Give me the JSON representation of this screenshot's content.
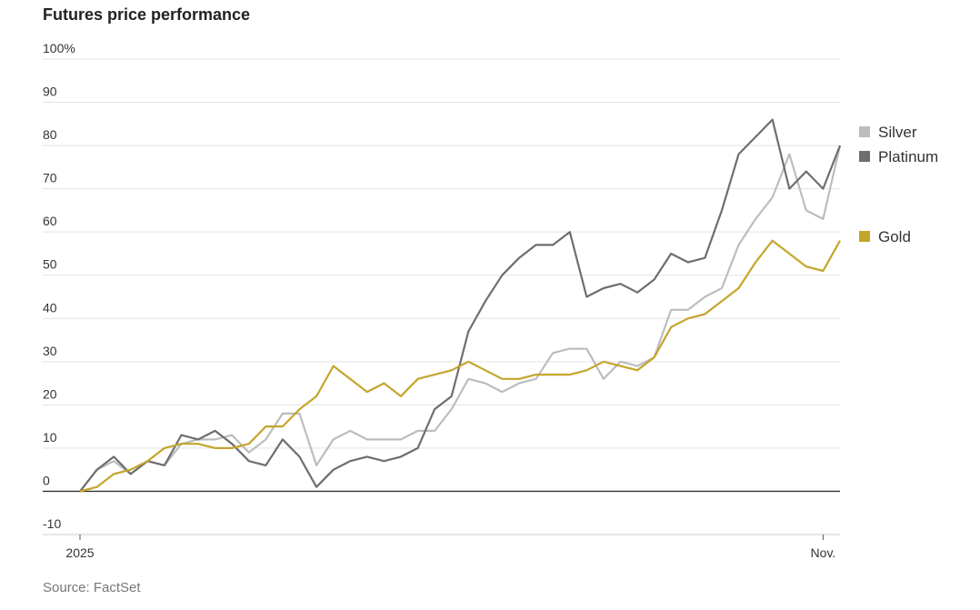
{
  "chart_data": {
    "type": "line",
    "title": "Futures price performance",
    "source": "Source: FactSet",
    "categories": [
      "2025",
      null,
      null,
      null,
      null,
      null,
      null,
      null,
      null,
      null,
      null,
      null,
      null,
      null,
      null,
      null,
      null,
      null,
      null,
      null,
      null,
      null,
      null,
      null,
      null,
      null,
      null,
      null,
      null,
      null,
      null,
      null,
      null,
      null,
      null,
      null,
      null,
      null,
      null,
      null,
      null,
      null,
      null,
      null,
      "Nov.",
      null
    ],
    "series": [
      {
        "name": "Silver",
        "color": "#bdbdbd",
        "values": [
          0,
          5,
          7,
          4,
          7,
          6,
          11,
          12,
          12,
          13,
          9,
          12,
          18,
          18,
          6,
          12,
          14,
          12,
          12,
          12,
          14,
          14,
          19,
          26,
          25,
          23,
          25,
          26,
          32,
          33,
          33,
          26,
          30,
          29,
          31,
          42,
          42,
          45,
          47,
          57,
          63,
          68,
          78,
          65,
          63,
          80
        ]
      },
      {
        "name": "Platinum",
        "color": "#6e6e6e",
        "values": [
          0,
          5,
          8,
          4,
          7,
          6,
          13,
          12,
          14,
          11,
          7,
          6,
          12,
          8,
          1,
          5,
          7,
          8,
          7,
          8,
          10,
          19,
          22,
          37,
          44,
          50,
          54,
          57,
          57,
          60,
          45,
          47,
          48,
          46,
          49,
          55,
          53,
          54,
          65,
          78,
          82,
          86,
          70,
          74,
          70,
          80
        ]
      },
      {
        "name": "Gold",
        "color": "#c4a52a",
        "values": [
          0,
          1,
          4,
          5,
          7,
          10,
          11,
          11,
          10,
          10,
          11,
          15,
          15,
          19,
          22,
          29,
          26,
          23,
          25,
          22,
          26,
          27,
          28,
          30,
          28,
          26,
          26,
          27,
          27,
          27,
          28,
          30,
          29,
          28,
          31,
          38,
          40,
          41,
          44,
          47,
          53,
          58,
          55,
          52,
          51,
          58
        ]
      }
    ],
    "ylim": [
      -10,
      100
    ],
    "yticks": [
      -10,
      0,
      10,
      20,
      30,
      40,
      50,
      60,
      70,
      80,
      90,
      {
        "value": 100,
        "label": "100%"
      }
    ],
    "grid": true
  }
}
